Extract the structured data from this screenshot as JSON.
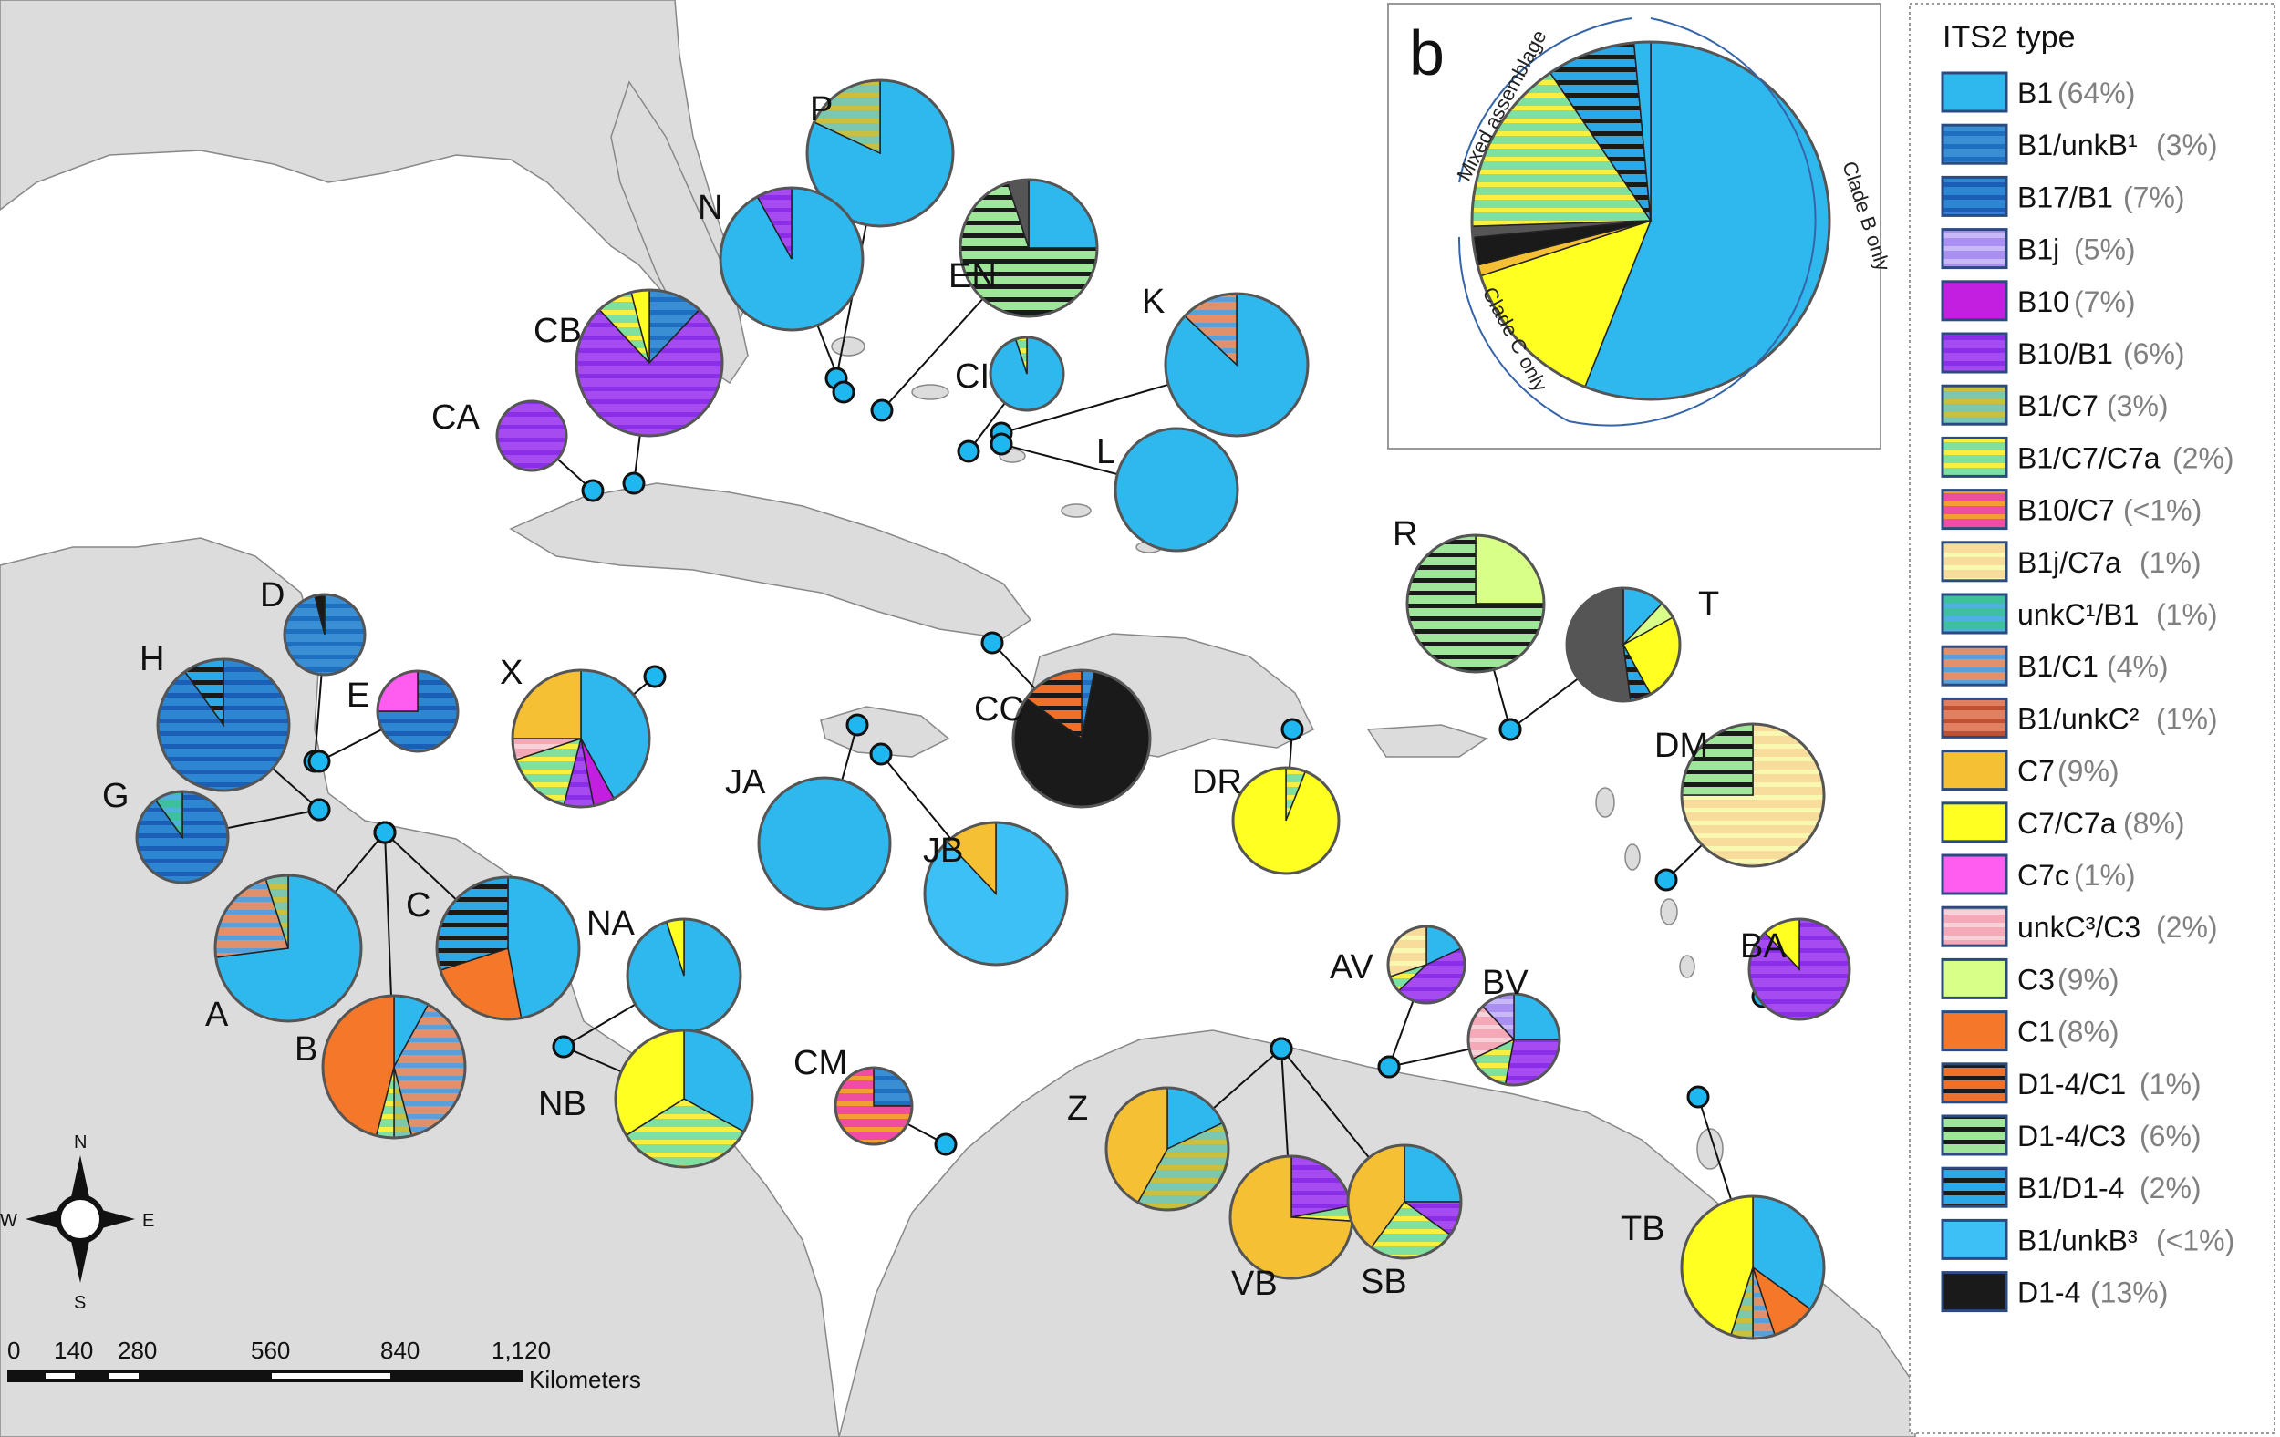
{
  "colors": {
    "B1": "#2fb8ee",
    "B1_unkB1": "#3a8fd4",
    "B17_B1": "#2c86d2",
    "B1j": "#a98ff2",
    "B10": "#c21fe0",
    "B10_B1": "#a54bf0",
    "B1_C7": "#7cc7ae",
    "B1_C7_C7a": "#7fe0a0",
    "B10_C7": "#ef4ea0",
    "B1j_C7a": "#f7dc9c",
    "unkC1_B1": "#3ec0a0",
    "B1_C1": "#e0906a",
    "B1_unkC2": "#e08060",
    "C7": "#f5c034",
    "C7_C7a": "#ffff22",
    "C7c": "#ff5cf0",
    "unkC3_C3": "#f4a8b8",
    "C3": "#d8ff88",
    "C1": "#f5782a",
    "D1_4_C1": "#f0702a",
    "D1_4_C3": "#a0e69a",
    "B1_D1_4": "#2aa8e8",
    "B1_unkB3": "#3cc0f5",
    "D1_4": "#1a1a1a",
    "dark": "#555555",
    "land": "#dcdcdc",
    "water": "#ffffff",
    "marker": "#1fb7f0"
  },
  "legend": {
    "title": "ITS2 type",
    "items": [
      {
        "key": "B1",
        "name": "B1",
        "pct": "(64%)",
        "pattern": "solid"
      },
      {
        "key": "B1_unkB1",
        "name": "B1/unkB¹",
        "pct": "(3%)",
        "pattern": "stripe",
        "alt": "#1f6fc0"
      },
      {
        "key": "B17_B1",
        "name": "B17/B1",
        "pct": "(7%)",
        "pattern": "stripe",
        "alt": "#1a5fb5"
      },
      {
        "key": "B1j",
        "name": "B1j",
        "pct": "(5%)",
        "pattern": "stripe",
        "alt": "#c9b8f8"
      },
      {
        "key": "B10",
        "name": "B10",
        "pct": "(7%)",
        "pattern": "solid"
      },
      {
        "key": "B10_B1",
        "name": "B10/B1",
        "pct": "(6%)",
        "pattern": "stripe",
        "alt": "#8a2ee8"
      },
      {
        "key": "B1_C7",
        "name": "B1/C7",
        "pct": "(3%)",
        "pattern": "stripe",
        "alt": "#c8c040"
      },
      {
        "key": "B1_C7_C7a",
        "name": "B1/C7/C7a",
        "pct": "(2%)",
        "pattern": "stripe",
        "alt": "#f8f040"
      },
      {
        "key": "B10_C7",
        "name": "B10/C7",
        "pct": "(<1%)",
        "pattern": "stripe",
        "alt": "#f0a030"
      },
      {
        "key": "B1j_C7a",
        "name": "B1j/C7a",
        "pct": "(1%)",
        "pattern": "stripe",
        "alt": "#f8f8b0"
      },
      {
        "key": "unkC1_B1",
        "name": "unkC¹/B1",
        "pct": "(1%)",
        "pattern": "stripe",
        "alt": "#50b0e0"
      },
      {
        "key": "B1_C1",
        "name": "B1/C1",
        "pct": "(4%)",
        "pattern": "stripe",
        "alt": "#5aa0d8"
      },
      {
        "key": "B1_unkC2",
        "name": "B1/unkC²",
        "pct": "(1%)",
        "pattern": "stripe",
        "alt": "#c05030"
      },
      {
        "key": "C7",
        "name": "C7",
        "pct": "(9%)",
        "pattern": "solid"
      },
      {
        "key": "C7_C7a",
        "name": "C7/C7a",
        "pct": "(8%)",
        "pattern": "solid"
      },
      {
        "key": "C7c",
        "name": "C7c",
        "pct": "(1%)",
        "pattern": "solid"
      },
      {
        "key": "unkC3_C3",
        "name": "unkC³/C3",
        "pct": "(2%)",
        "pattern": "stripe",
        "alt": "#f8d0d8"
      },
      {
        "key": "C3",
        "name": "C3",
        "pct": "(9%)",
        "pattern": "solid"
      },
      {
        "key": "C1",
        "name": "C1",
        "pct": "(8%)",
        "pattern": "solid"
      },
      {
        "key": "D1_4_C1",
        "name": "D1-4/C1",
        "pct": "(1%)",
        "pattern": "stripe",
        "alt": "#1a1a1a"
      },
      {
        "key": "D1_4_C3",
        "name": "D1-4/C3",
        "pct": "(6%)",
        "pattern": "stripe",
        "alt": "#1a1a1a"
      },
      {
        "key": "B1_D1_4",
        "name": "B1/D1-4",
        "pct": "(2%)",
        "pattern": "stripe",
        "alt": "#1a1a1a"
      },
      {
        "key": "B1_unkB3",
        "name": "B1/unkB³",
        "pct": "(<1%)",
        "pattern": "solid"
      },
      {
        "key": "D1_4",
        "name": "D1-4",
        "pct": "(13%)",
        "pattern": "solid"
      }
    ]
  },
  "inset": {
    "letter": "b",
    "labels": {
      "mixed": "Mixed assemblage",
      "cladeB": "Clade B only",
      "cladeC": "Clade C only"
    },
    "slices": [
      {
        "key": "B1",
        "frac": 0.56
      },
      {
        "key": "C7_C7a",
        "frac": 0.14
      },
      {
        "key": "C7",
        "frac": 0.01
      },
      {
        "key": "D1_4",
        "frac": 0.025
      },
      {
        "key": "dark",
        "frac": 0.01
      },
      {
        "key": "B1_C7_C7a",
        "frac": 0.16
      },
      {
        "key": "B1_D1_4",
        "frac": 0.08
      },
      {
        "key": "B1",
        "frac": 0.015
      }
    ]
  },
  "sites": [
    {
      "id": "P",
      "label": "P",
      "slices": [
        {
          "key": "B1",
          "frac": 0.82
        },
        {
          "key": "B1_C7",
          "frac": 0.18
        }
      ]
    },
    {
      "id": "N",
      "label": "N",
      "slices": [
        {
          "key": "B1",
          "frac": 0.92
        },
        {
          "key": "B10_B1",
          "frac": 0.08
        }
      ]
    },
    {
      "id": "EN",
      "label": "EN",
      "slices": [
        {
          "key": "B1",
          "frac": 0.25
        },
        {
          "key": "D1_4_C3",
          "frac": 0.7
        },
        {
          "key": "dark",
          "frac": 0.05
        }
      ]
    },
    {
      "id": "CB",
      "label": "CB",
      "slices": [
        {
          "key": "B1_unkB1",
          "frac": 0.12
        },
        {
          "key": "B10_B1",
          "frac": 0.76
        },
        {
          "key": "B1_C7_C7a",
          "frac": 0.08
        },
        {
          "key": "C7_C7a",
          "frac": 0.04
        }
      ]
    },
    {
      "id": "CA",
      "label": "CA",
      "slices": [
        {
          "key": "B10_B1",
          "frac": 1.0
        }
      ]
    },
    {
      "id": "CI",
      "label": "CI",
      "slices": [
        {
          "key": "B1",
          "frac": 0.95
        },
        {
          "key": "B1_C7_C7a",
          "frac": 0.05
        }
      ]
    },
    {
      "id": "K",
      "label": "K",
      "slices": [
        {
          "key": "B1",
          "frac": 0.87
        },
        {
          "key": "B1_C1",
          "frac": 0.13
        }
      ]
    },
    {
      "id": "L",
      "label": "L",
      "slices": [
        {
          "key": "B1",
          "frac": 1.0
        }
      ]
    },
    {
      "id": "R",
      "label": "R",
      "slices": [
        {
          "key": "C3",
          "frac": 0.25
        },
        {
          "key": "D1_4_C3",
          "frac": 0.75
        }
      ]
    },
    {
      "id": "T",
      "label": "T",
      "slices": [
        {
          "key": "B1",
          "frac": 0.12
        },
        {
          "key": "C3",
          "frac": 0.05
        },
        {
          "key": "C7_C7a",
          "frac": 0.25
        },
        {
          "key": "B1_D1_4",
          "frac": 0.06
        },
        {
          "key": "dark",
          "frac": 0.52
        }
      ]
    },
    {
      "id": "DM",
      "label": "DM",
      "slices": [
        {
          "key": "B1j_C7a",
          "frac": 0.75
        },
        {
          "key": "D1_4_C3",
          "frac": 0.25
        }
      ]
    },
    {
      "id": "D",
      "label": "D",
      "slices": [
        {
          "key": "B1_unkB1",
          "frac": 0.96
        },
        {
          "key": "D1_4",
          "frac": 0.04
        }
      ]
    },
    {
      "id": "E",
      "label": "E",
      "slices": [
        {
          "key": "B17_B1",
          "frac": 0.75
        },
        {
          "key": "C7c",
          "frac": 0.25
        }
      ]
    },
    {
      "id": "H",
      "label": "H",
      "slices": [
        {
          "key": "B17_B1",
          "frac": 0.9
        },
        {
          "key": "B1_D1_4",
          "frac": 0.1
        }
      ]
    },
    {
      "id": "G",
      "label": "G",
      "slices": [
        {
          "key": "B17_B1",
          "frac": 0.9
        },
        {
          "key": "unkC1_B1",
          "frac": 0.1
        }
      ]
    },
    {
      "id": "X",
      "label": "X",
      "slices": [
        {
          "key": "B1",
          "frac": 0.42
        },
        {
          "key": "B10",
          "frac": 0.05
        },
        {
          "key": "B10_B1",
          "frac": 0.07
        },
        {
          "key": "B1_C7_C7a",
          "frac": 0.16
        },
        {
          "key": "unkC3_C3",
          "frac": 0.05
        },
        {
          "key": "C7",
          "frac": 0.25
        }
      ]
    },
    {
      "id": "CC",
      "label": "CC",
      "slices": [
        {
          "key": "B1_unkB1",
          "frac": 0.03
        },
        {
          "key": "D1_4",
          "frac": 0.82
        },
        {
          "key": "D1_4_C1",
          "frac": 0.15
        }
      ]
    },
    {
      "id": "JA",
      "label": "JA",
      "slices": [
        {
          "key": "B1",
          "frac": 1.0
        }
      ]
    },
    {
      "id": "JB",
      "label": "JB",
      "slices": [
        {
          "key": "B1_unkB3",
          "frac": 0.88
        },
        {
          "key": "C7",
          "frac": 0.12
        }
      ]
    },
    {
      "id": "DR",
      "label": "DR",
      "slices": [
        {
          "key": "B1_C7_C7a",
          "frac": 0.06
        },
        {
          "key": "C7_C7a",
          "frac": 0.94
        }
      ]
    },
    {
      "id": "A",
      "label": "A",
      "slices": [
        {
          "key": "B1",
          "frac": 0.73
        },
        {
          "key": "B1_C1",
          "frac": 0.22
        },
        {
          "key": "B1_C7",
          "frac": 0.05
        }
      ]
    },
    {
      "id": "C",
      "label": "C",
      "slices": [
        {
          "key": "B1",
          "frac": 0.47
        },
        {
          "key": "C1",
          "frac": 0.23
        },
        {
          "key": "B1_D1_4",
          "frac": 0.3
        }
      ]
    },
    {
      "id": "NA",
      "label": "NA",
      "slices": [
        {
          "key": "B1",
          "frac": 0.95
        },
        {
          "key": "C7_C7a",
          "frac": 0.05
        }
      ]
    },
    {
      "id": "B",
      "label": "B",
      "slices": [
        {
          "key": "B1",
          "frac": 0.08
        },
        {
          "key": "B1_C1",
          "frac": 0.38
        },
        {
          "key": "B1_C7",
          "frac": 0.04
        },
        {
          "key": "B1_C7_C7a",
          "frac": 0.04
        },
        {
          "key": "C1",
          "frac": 0.46
        }
      ]
    },
    {
      "id": "NB",
      "label": "NB",
      "slices": [
        {
          "key": "B1",
          "frac": 0.33
        },
        {
          "key": "B1_C7_C7a",
          "frac": 0.33
        },
        {
          "key": "C7_C7a",
          "frac": 0.34
        }
      ]
    },
    {
      "id": "CM",
      "label": "CM",
      "slices": [
        {
          "key": "B1_unkB1",
          "frac": 0.25
        },
        {
          "key": "B10_C7",
          "frac": 0.75
        }
      ]
    },
    {
      "id": "AV",
      "label": "AV",
      "slices": [
        {
          "key": "B1",
          "frac": 0.18
        },
        {
          "key": "B10_B1",
          "frac": 0.45
        },
        {
          "key": "B1_C7_C7a",
          "frac": 0.07
        },
        {
          "key": "B1j_C7a",
          "frac": 0.3
        }
      ]
    },
    {
      "id": "BV",
      "label": "BV",
      "slices": [
        {
          "key": "B1",
          "frac": 0.25
        },
        {
          "key": "B10_B1",
          "frac": 0.28
        },
        {
          "key": "B1_C7_C7a",
          "frac": 0.15
        },
        {
          "key": "unkC3_C3",
          "frac": 0.2
        },
        {
          "key": "B1j",
          "frac": 0.12
        }
      ]
    },
    {
      "id": "BA",
      "label": "BA",
      "slices": [
        {
          "key": "B10_B1",
          "frac": 0.88
        },
        {
          "key": "C7_C7a",
          "frac": 0.12
        }
      ]
    },
    {
      "id": "Z",
      "label": "Z",
      "slices": [
        {
          "key": "B1",
          "frac": 0.18
        },
        {
          "key": "B1_C7",
          "frac": 0.4
        },
        {
          "key": "C7",
          "frac": 0.42
        }
      ]
    },
    {
      "id": "VB",
      "label": "VB",
      "slices": [
        {
          "key": "B10_B1",
          "frac": 0.22
        },
        {
          "key": "B1_C7_C7a",
          "frac": 0.04
        },
        {
          "key": "C7",
          "frac": 0.74
        }
      ]
    },
    {
      "id": "SB",
      "label": "SB",
      "slices": [
        {
          "key": "B1",
          "frac": 0.25
        },
        {
          "key": "B10_B1",
          "frac": 0.1
        },
        {
          "key": "B1_C7_C7a",
          "frac": 0.25
        },
        {
          "key": "C7",
          "frac": 0.4
        }
      ]
    },
    {
      "id": "TB",
      "label": "TB",
      "slices": [
        {
          "key": "B1",
          "frac": 0.35
        },
        {
          "key": "C1",
          "frac": 0.1
        },
        {
          "key": "B1_C1",
          "frac": 0.05
        },
        {
          "key": "B1_C7",
          "frac": 0.05
        },
        {
          "key": "C7_C7a",
          "frac": 0.45
        }
      ]
    }
  ],
  "scale": {
    "ticks": [
      "0",
      "140",
      "280",
      "560",
      "840",
      "1,120"
    ],
    "unit": "Kilometers"
  },
  "compass": {
    "n": "N",
    "s": "S",
    "e": "E",
    "w": "W"
  }
}
